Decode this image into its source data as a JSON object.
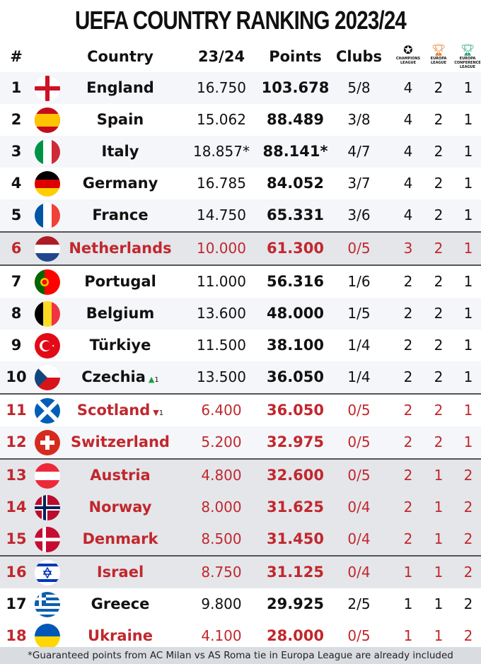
{
  "title": "UEFA COUNTRY RANKING 2023/24",
  "headers": {
    "rank": "#",
    "country": "Country",
    "season": "23/24",
    "points": "Points",
    "clubs": "Clubs",
    "cl_logo": "CHAMPIONS LEAGUE",
    "el_logo": "EUROPA LEAGUE",
    "ecl_logo": "EUROPA CONFERENCE LEAGUE"
  },
  "colors": {
    "highlight_red": "#c1272d",
    "band_gray": "#e4e6ea",
    "row_light": "#f4f6f9",
    "up_arrow": "#1f9d3a"
  },
  "rows": [
    {
      "rank": "1",
      "country": "England",
      "season": "16.750",
      "points": "103.678",
      "clubs": "5/8",
      "cl": "4",
      "el": "2",
      "ecl": "1",
      "flag": "england",
      "red": false
    },
    {
      "rank": "2",
      "country": "Spain",
      "season": "15.062",
      "points": "88.489",
      "clubs": "3/8",
      "cl": "4",
      "el": "2",
      "ecl": "1",
      "flag": "spain",
      "red": false
    },
    {
      "rank": "3",
      "country": "Italy",
      "season": "18.857*",
      "points": "88.141*",
      "clubs": "4/7",
      "cl": "4",
      "el": "2",
      "ecl": "1",
      "flag": "italy",
      "red": false
    },
    {
      "rank": "4",
      "country": "Germany",
      "season": "16.785",
      "points": "84.052",
      "clubs": "3/7",
      "cl": "4",
      "el": "2",
      "ecl": "1",
      "flag": "germany",
      "red": false
    },
    {
      "rank": "5",
      "country": "France",
      "season": "14.750",
      "points": "65.331",
      "clubs": "3/6",
      "cl": "4",
      "el": "2",
      "ecl": "1",
      "flag": "france",
      "red": false
    },
    {
      "rank": "6",
      "country": "Netherlands",
      "season": "10.000",
      "points": "61.300",
      "clubs": "0/5",
      "cl": "3",
      "el": "2",
      "ecl": "1",
      "flag": "netherlands",
      "red": true
    },
    {
      "rank": "7",
      "country": "Portugal",
      "season": "11.000",
      "points": "56.316",
      "clubs": "1/6",
      "cl": "2",
      "el": "2",
      "ecl": "1",
      "flag": "portugal",
      "red": false
    },
    {
      "rank": "8",
      "country": "Belgium",
      "season": "13.600",
      "points": "48.000",
      "clubs": "1/5",
      "cl": "2",
      "el": "2",
      "ecl": "1",
      "flag": "belgium",
      "red": false
    },
    {
      "rank": "9",
      "country": "Türkiye",
      "season": "11.500",
      "points": "38.100",
      "clubs": "1/4",
      "cl": "2",
      "el": "2",
      "ecl": "1",
      "flag": "turkiye",
      "red": false
    },
    {
      "rank": "10",
      "country": "Czechia",
      "season": "13.500",
      "points": "36.050",
      "clubs": "1/4",
      "cl": "2",
      "el": "2",
      "ecl": "1",
      "flag": "czechia",
      "red": false,
      "move": "up",
      "move_n": "1"
    },
    {
      "rank": "11",
      "country": "Scotland",
      "season": "6.400",
      "points": "36.050",
      "clubs": "0/5",
      "cl": "2",
      "el": "2",
      "ecl": "1",
      "flag": "scotland",
      "red": true,
      "move": "down",
      "move_n": "1"
    },
    {
      "rank": "12",
      "country": "Switzerland",
      "season": "5.200",
      "points": "32.975",
      "clubs": "0/5",
      "cl": "2",
      "el": "2",
      "ecl": "1",
      "flag": "switzerland",
      "red": true
    },
    {
      "rank": "13",
      "country": "Austria",
      "season": "4.800",
      "points": "32.600",
      "clubs": "0/5",
      "cl": "2",
      "el": "1",
      "ecl": "2",
      "flag": "austria",
      "red": true
    },
    {
      "rank": "14",
      "country": "Norway",
      "season": "8.000",
      "points": "31.625",
      "clubs": "0/4",
      "cl": "2",
      "el": "1",
      "ecl": "2",
      "flag": "norway",
      "red": true
    },
    {
      "rank": "15",
      "country": "Denmark",
      "season": "8.500",
      "points": "31.450",
      "clubs": "0/4",
      "cl": "2",
      "el": "1",
      "ecl": "2",
      "flag": "denmark",
      "red": true
    },
    {
      "rank": "16",
      "country": "Israel",
      "season": "8.750",
      "points": "31.125",
      "clubs": "0/4",
      "cl": "1",
      "el": "1",
      "ecl": "2",
      "flag": "israel",
      "red": true
    },
    {
      "rank": "17",
      "country": "Greece",
      "season": "9.800",
      "points": "29.925",
      "clubs": "2/5",
      "cl": "1",
      "el": "1",
      "ecl": "2",
      "flag": "greece",
      "red": false
    },
    {
      "rank": "18",
      "country": "Ukraine",
      "season": "4.100",
      "points": "28.000",
      "clubs": "0/5",
      "cl": "1",
      "el": "1",
      "ecl": "2",
      "flag": "ukraine",
      "red": true
    }
  ],
  "footer": "*Guaranteed points from AC Milan vs AS Roma tie in Europa League are already included"
}
